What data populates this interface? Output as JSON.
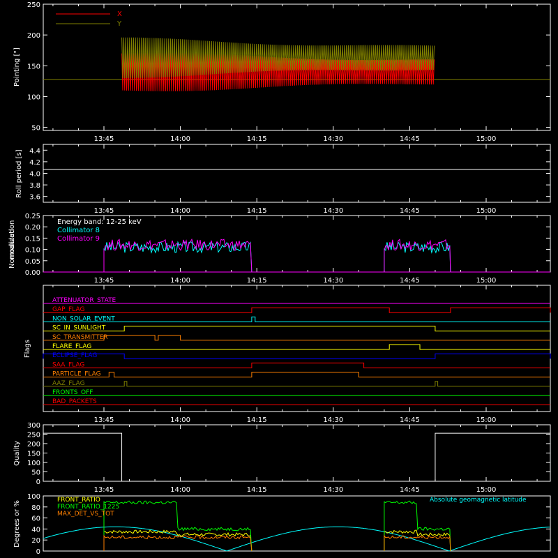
{
  "chart_data": [
    {
      "type": "line",
      "ylabel": "Pointing [\"]",
      "yticks": [
        "50",
        "100",
        "150",
        "200",
        "250"
      ],
      "ylim": [
        45,
        250
      ],
      "xtick_labels": [
        "13:45",
        "14:00",
        "14:15",
        "14:30",
        "14:45",
        "15:00"
      ],
      "legend": [
        {
          "name": "X",
          "color": "#ff0000"
        },
        {
          "name": "Y",
          "color": "#808000"
        }
      ],
      "series": [
        {
          "name": "X",
          "color": "#ff0000",
          "center": 140,
          "amp_start": 60,
          "amp_end": 38,
          "x_start": "13:48:30",
          "x_end": "14:50:00"
        },
        {
          "name": "Y",
          "color": "#808000",
          "center": 163,
          "amp_start": 60,
          "amp_end": 35,
          "x_start": "13:48:30",
          "x_end": "14:50:00"
        }
      ],
      "reference_line": {
        "value": 128,
        "color": "#808000"
      }
    },
    {
      "type": "line",
      "ylabel": "Roll period [s]",
      "yticks": [
        "3.6",
        "3.8",
        "4.0",
        "4.2",
        "4.4"
      ],
      "ylim": [
        3.5,
        4.5
      ],
      "xtick_labels": [
        "13:45",
        "14:00",
        "14:15",
        "14:30",
        "14:45",
        "15:00"
      ],
      "series": [
        {
          "name": "",
          "color": "#ffffff",
          "values": [
            4.07
          ]
        }
      ]
    },
    {
      "type": "line",
      "ylabel": "Normalized modulation",
      "yticks": [
        "0.00",
        "0.05",
        "0.10",
        "0.15",
        "0.20",
        "0.25"
      ],
      "ylim": [
        0,
        0.25
      ],
      "xtick_labels": [
        "13:45",
        "14:00",
        "14:15",
        "14:30",
        "14:45",
        "15:00"
      ],
      "annotation": "Energy band: 12-25 keV",
      "series": [
        {
          "name": "Collimator 8",
          "color": "#00ffff",
          "segments": [
            [
              "13:45:00",
              "14:14:00"
            ],
            [
              "14:40:00",
              "14:53:00"
            ]
          ],
          "level": 0.11
        },
        {
          "name": "Collimator 9",
          "color": "#ff00ff",
          "segments": [
            [
              "13:45:00",
              "14:14:00"
            ],
            [
              "14:40:00",
              "14:53:00"
            ]
          ],
          "level": 0.12
        }
      ]
    },
    {
      "type": "line",
      "ylabel": "Flags",
      "xtick_labels": [
        "13:45",
        "14:00",
        "14:15",
        "14:30",
        "14:45",
        "15:00"
      ],
      "series": [
        {
          "name": "ATTENUATOR_STATE",
          "color": "#ff00ff"
        },
        {
          "name": "GAP_FLAG",
          "color": "#ff0000"
        },
        {
          "name": "NON_SOLAR_EVENT",
          "color": "#00ffff"
        },
        {
          "name": "SC_IN_SUNLIGHT",
          "color": "#ffff00"
        },
        {
          "name": "SC_TRANSMITTER",
          "color": "#ff8000"
        },
        {
          "name": "FLARE_FLAG",
          "color": "#ffff00"
        },
        {
          "name": "ECLIPSE_FLAG",
          "color": "#0000ff"
        },
        {
          "name": "SAA_FLAG",
          "color": "#ff0000"
        },
        {
          "name": "PARTICLE_FLAG",
          "color": "#ff8000"
        },
        {
          "name": "AAZ_FLAG",
          "color": "#808000"
        },
        {
          "name": "FRONTS_OFF",
          "color": "#00ff00"
        },
        {
          "name": "BAD_PACKETS",
          "color": "#ff0000"
        }
      ]
    },
    {
      "type": "line",
      "ylabel": "Quality",
      "yticks": [
        "0",
        "50",
        "100",
        "150",
        "200",
        "250",
        "300"
      ],
      "ylim": [
        0,
        300
      ],
      "xtick_labels": [
        "13:45",
        "14:00",
        "14:15",
        "14:30",
        "14:45",
        "15:00"
      ],
      "series": [
        {
          "name": "",
          "color": "#ffffff",
          "values": [
            255,
            0,
            255
          ]
        }
      ]
    },
    {
      "type": "line",
      "ylabel": "Degrees or %",
      "yticks": [
        "0",
        "20",
        "40",
        "60",
        "80",
        "100"
      ],
      "ylim": [
        0,
        100
      ],
      "xtick_labels": [
        "13:45",
        "14:00",
        "14:15",
        "14:30",
        "14:45",
        "15:00"
      ],
      "legend": [
        {
          "name": "FRONT_RATIO",
          "color": "#ffff00"
        },
        {
          "name": "FRONT_RATIO_1225",
          "color": "#00ff00"
        },
        {
          "name": "MAX_DET_VS_TOT",
          "color": "#ff8000"
        }
      ],
      "annotation": {
        "text": "Absolute geomagnetic latitude",
        "color": "#00ffff"
      },
      "series": [
        {
          "name": "FRONT_RATIO",
          "color": "#ffff00",
          "level": 35
        },
        {
          "name": "FRONT_RATIO_1225",
          "color": "#00ff00",
          "level": 88
        },
        {
          "name": "MAX_DET_VS_TOT",
          "color": "#ff8000",
          "level": 25
        },
        {
          "name": "Absolute geomagnetic latitude",
          "color": "#00ffff",
          "peak": 44
        }
      ]
    }
  ]
}
